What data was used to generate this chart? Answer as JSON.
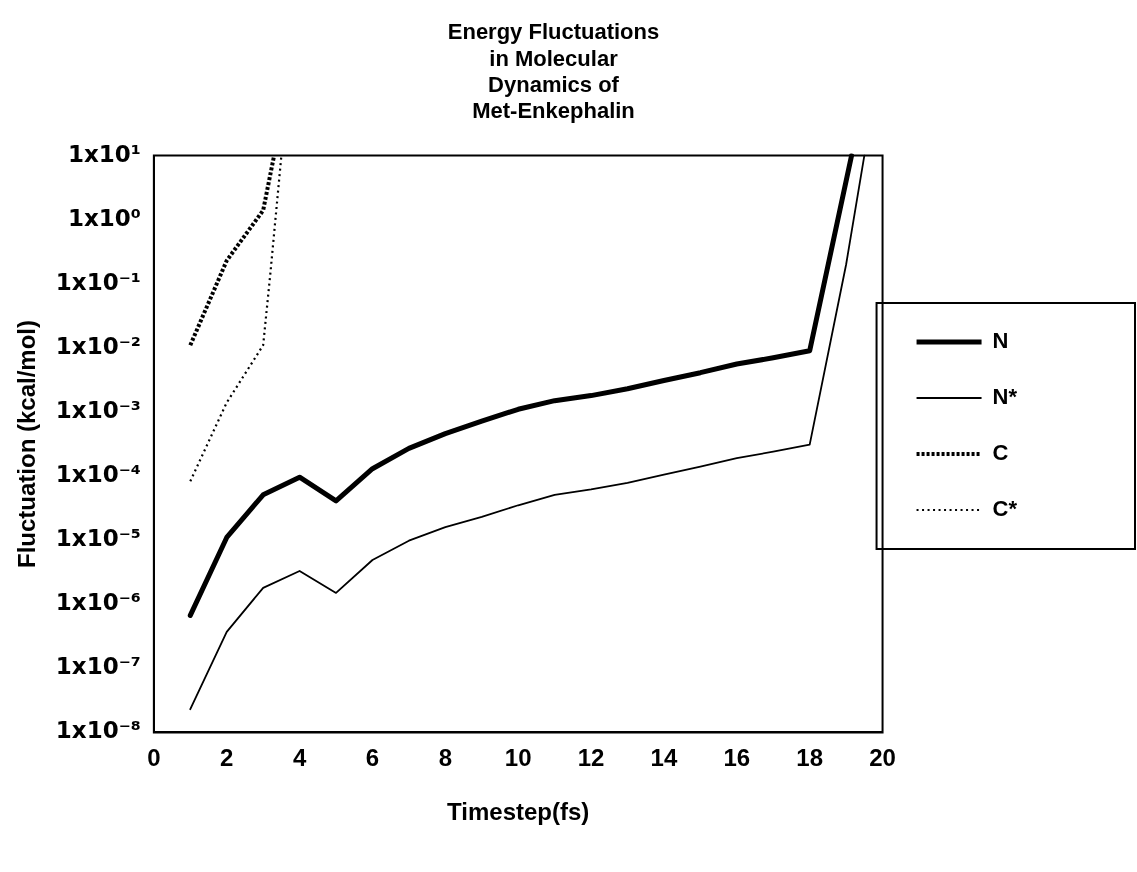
{
  "chart_data": {
    "type": "line",
    "title": "Energy Fluctuations in Molecular Dynamics of Met-Enkephalin",
    "xlabel": "Timestep(fs)",
    "ylabel": "Fluctuation (kcal/mol)",
    "log": "y",
    "grid": false,
    "legend": "right",
    "marker": "none",
    "xlim": [
      0,
      20
    ],
    "xticks": [
      0,
      2,
      4,
      6,
      8,
      10,
      12,
      14,
      16,
      18,
      20
    ],
    "ylim": [
      1e-08,
      10
    ],
    "yticks": [
      {
        "value": 10,
        "label": "1x10¹"
      },
      {
        "value": 1,
        "label": "1x10⁰"
      },
      {
        "value": 0.1,
        "label": "1x10⁻¹"
      },
      {
        "value": 0.01,
        "label": "1x10⁻²"
      },
      {
        "value": 0.001,
        "label": "1x10⁻³"
      },
      {
        "value": 0.0001,
        "label": "1x10⁻⁴"
      },
      {
        "value": 1e-05,
        "label": "1x10⁻⁵"
      },
      {
        "value": 1e-06,
        "label": "1x10⁻⁶"
      },
      {
        "value": 1e-07,
        "label": "1x10⁻⁷"
      },
      {
        "value": 1e-08,
        "label": "1x10⁻⁸"
      }
    ],
    "series": [
      {
        "name": "N",
        "color": "#000000",
        "line_style": "solid",
        "x": [
          1,
          2,
          3,
          4,
          5,
          6,
          7,
          8,
          9,
          10,
          11,
          12,
          13,
          14,
          15,
          16,
          17,
          18,
          19.15
        ],
        "values": [
          6.7e-07,
          1.1e-05,
          5.1e-05,
          9.6e-05,
          4.1e-05,
          0.00013,
          0.00027,
          0.00046,
          0.00072,
          0.0011,
          0.0015,
          0.0018,
          0.0023,
          0.0031,
          0.0041,
          0.0056,
          0.007,
          0.009,
          10
        ]
      },
      {
        "name": "N*",
        "color": "#000000",
        "line_style": "solid",
        "x": [
          1,
          2,
          3,
          4,
          5,
          6,
          7,
          8,
          9,
          10,
          11,
          12,
          13,
          14,
          15,
          16,
          17,
          18,
          19,
          19.5
        ],
        "values": [
          2.3e-08,
          3.7e-07,
          1.8e-06,
          3.3e-06,
          1.5e-06,
          4.9e-06,
          9.8e-06,
          1.6e-05,
          2.3e-05,
          3.5e-05,
          5.1e-05,
          6.2e-05,
          7.8e-05,
          0.000105,
          0.00014,
          0.00019,
          0.00024,
          0.00031,
          0.2,
          10
        ]
      },
      {
        "name": "C",
        "color": "#000000",
        "line_style": "dotted",
        "x": [
          1,
          2,
          3,
          3.3
        ],
        "values": [
          0.011,
          0.23,
          1.4,
          10
        ]
      },
      {
        "name": "C*",
        "color": "#000000",
        "line_style": "dotted",
        "x": [
          1,
          2,
          3,
          3.2,
          3.5
        ],
        "values": [
          8.3e-05,
          0.0014,
          0.011,
          0.15,
          10
        ]
      }
    ]
  }
}
